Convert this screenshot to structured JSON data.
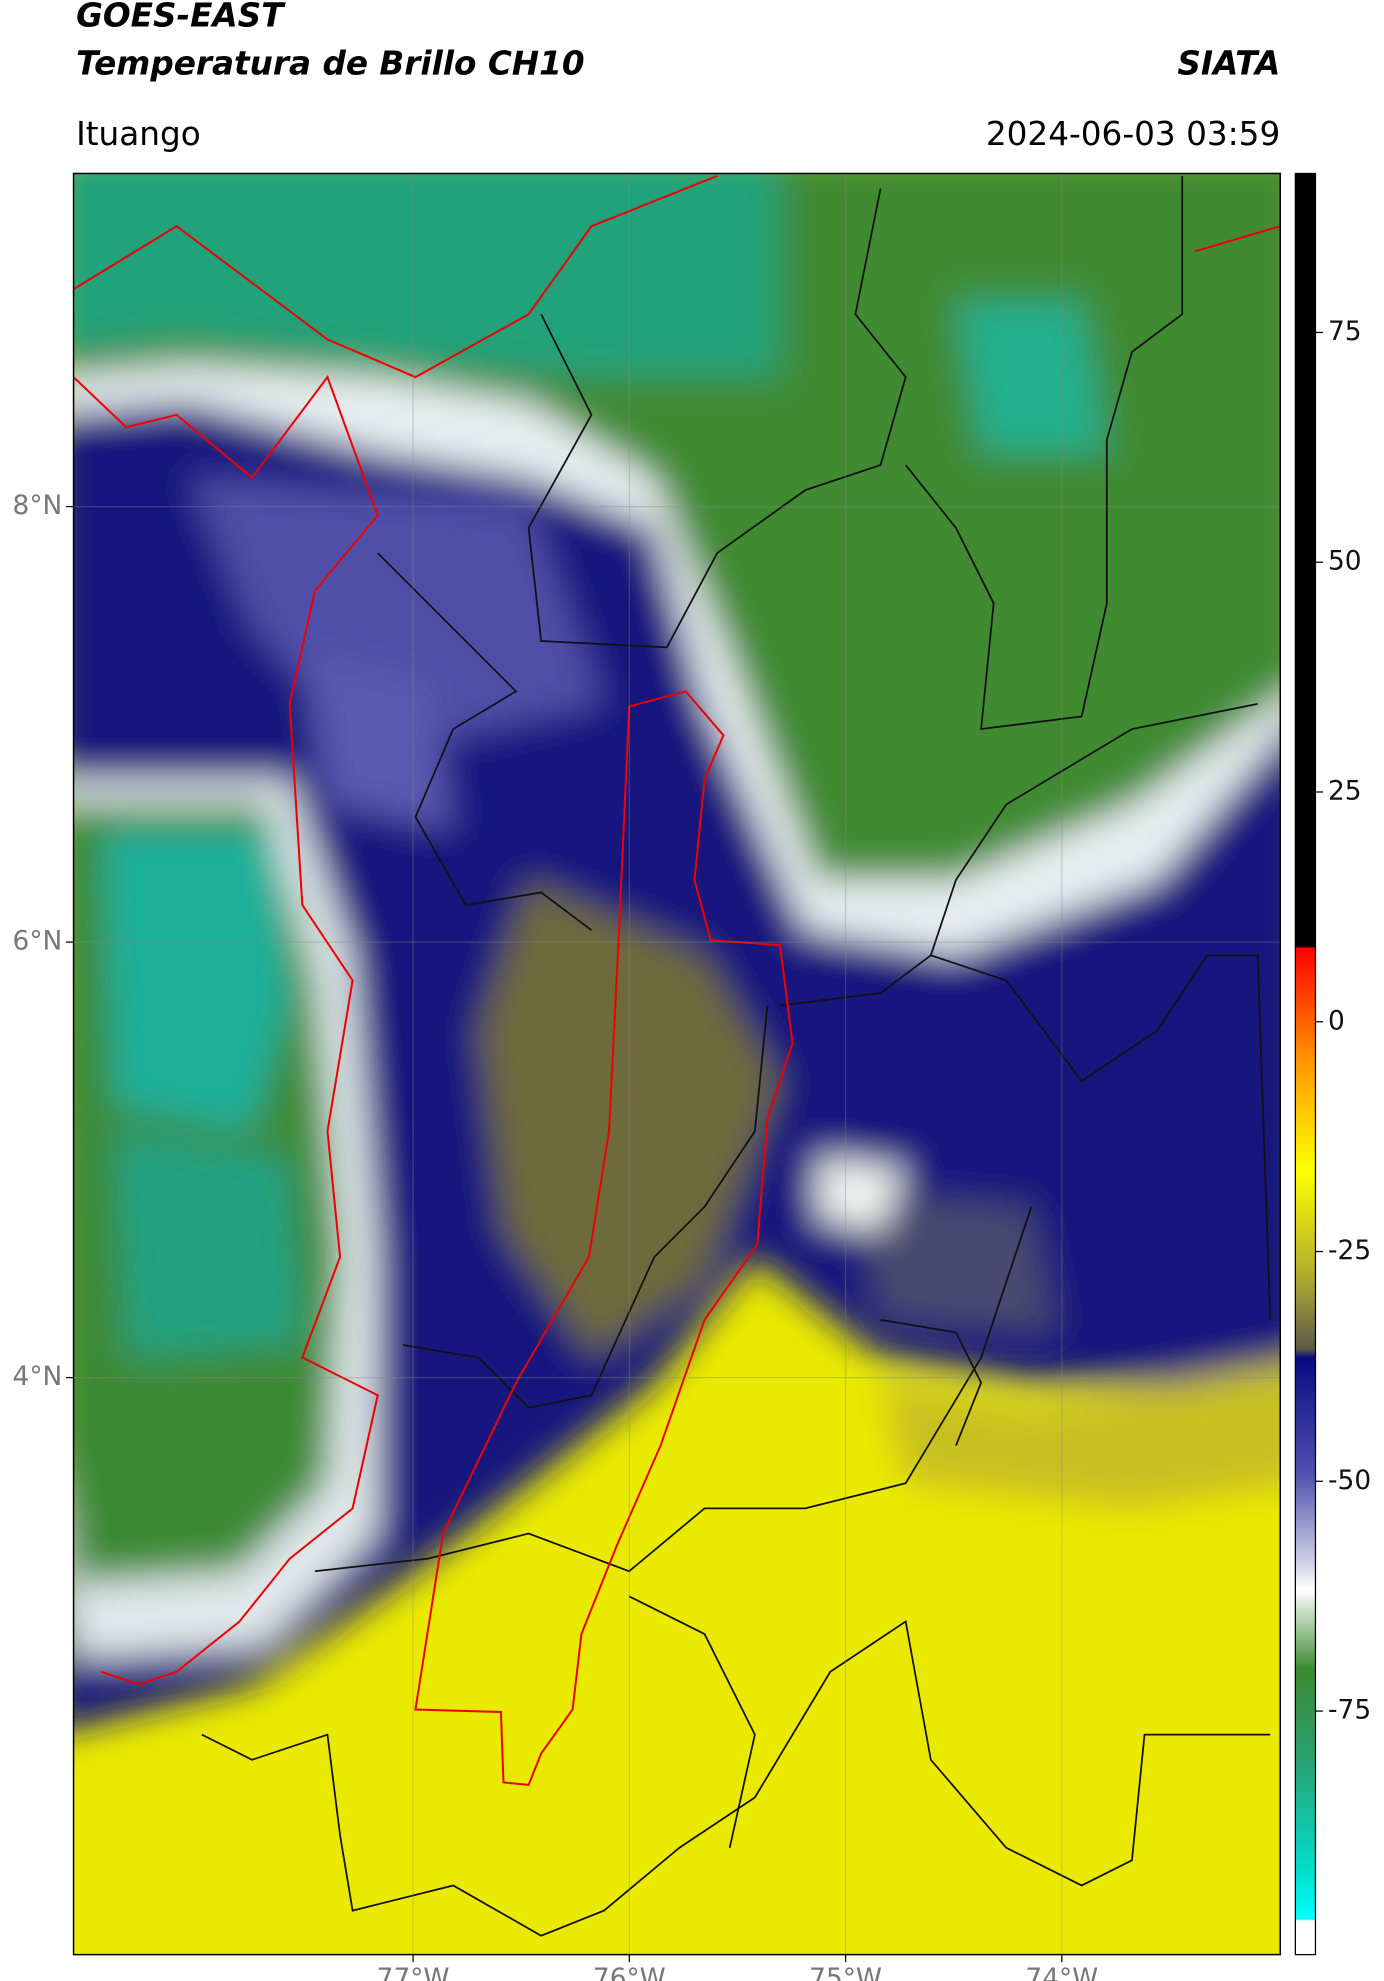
{
  "chart_data": {
    "type": "map",
    "title": "GOES-EAST",
    "subtitle": "Temperatura de Brillo CH10",
    "source": "SIATA",
    "location": "Ituango",
    "timestamp": "2024-06-03 03:59",
    "xlim": [
      -78.57,
      -72.99
    ],
    "ylim": [
      1.35,
      9.53
    ],
    "xticks": [
      {
        "value": -77,
        "label": "77°W"
      },
      {
        "value": -76,
        "label": "76°W"
      },
      {
        "value": -75,
        "label": "75°W"
      },
      {
        "value": -74,
        "label": "74°W"
      }
    ],
    "yticks": [
      {
        "value": 4,
        "label": "4°N"
      },
      {
        "value": 6,
        "label": "6°N"
      },
      {
        "value": 8,
        "label": "8°N"
      }
    ],
    "grid": true,
    "colorbar": {
      "lim": [
        -101.5,
        92.3
      ],
      "ticks": [
        75,
        50,
        25,
        0,
        -25,
        -50,
        -75
      ]
    }
  }
}
